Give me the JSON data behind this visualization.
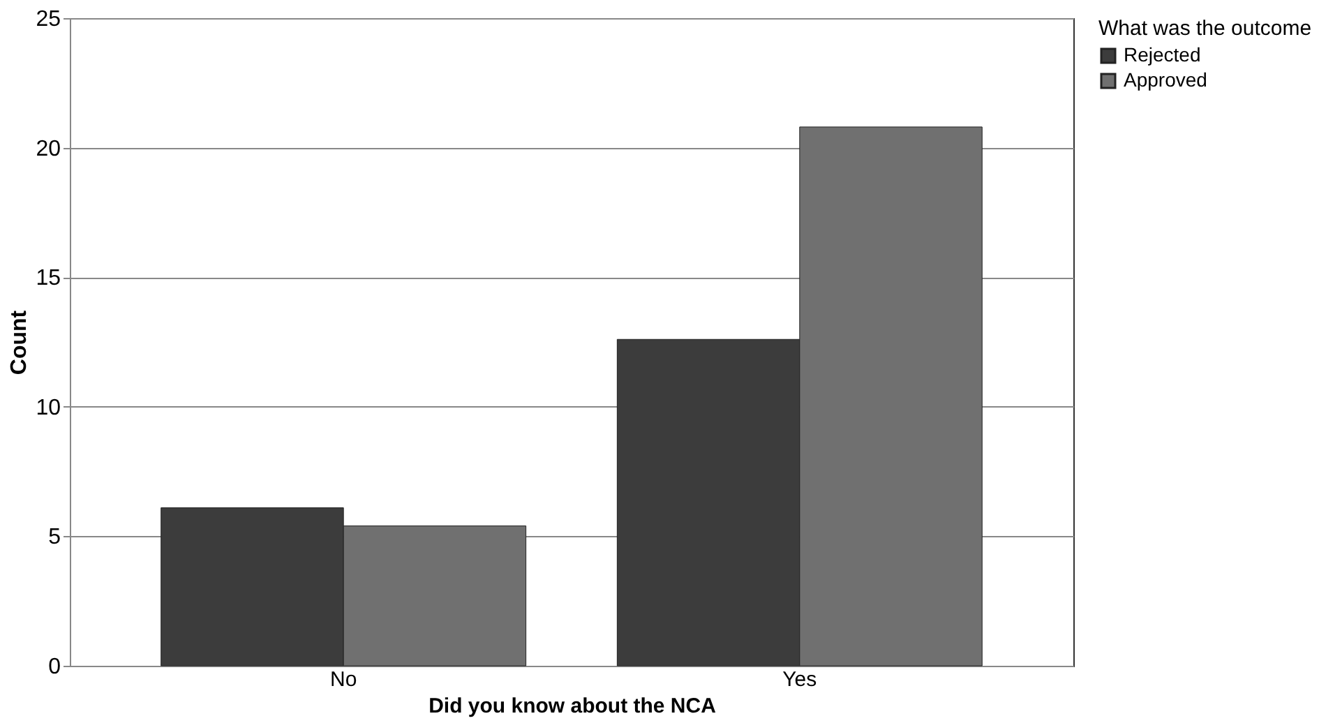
{
  "chart_data": {
    "type": "bar",
    "xlabel": "Did you know about the NCA",
    "ylabel": "Count",
    "legend_title": "What was the outcome",
    "categories": [
      "No",
      "Yes"
    ],
    "series": [
      {
        "name": "Rejected",
        "color": "#3c3c3c",
        "values": [
          6.1,
          12.6
        ]
      },
      {
        "name": "Approved",
        "color": "#707070",
        "values": [
          5.4,
          20.8
        ]
      }
    ],
    "ylim": [
      0,
      25
    ],
    "yticks": [
      0,
      5,
      10,
      15,
      20,
      25
    ],
    "grid": "y",
    "legend": "top right"
  }
}
